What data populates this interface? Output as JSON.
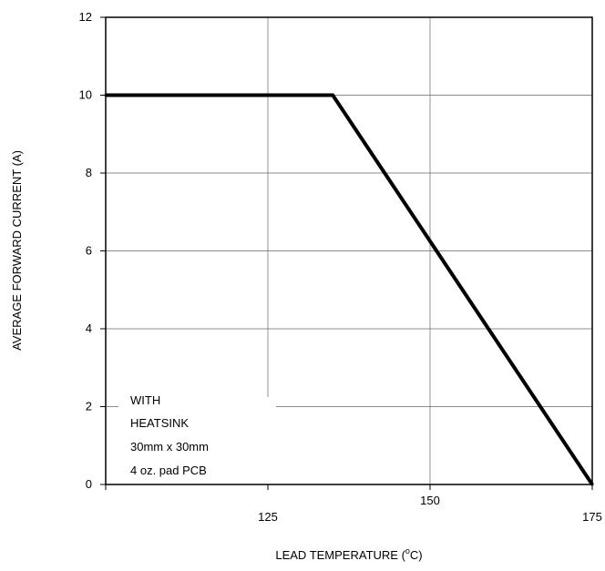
{
  "chart_data": {
    "type": "line",
    "title": "",
    "xlabel": "LEAD TEMPERATURE (",
    "xlabel_sup": "o",
    "xlabel_tail": "C)",
    "ylabel": "AVERAGE FORWARD CURRENT (A)",
    "xlim": [
      100,
      175
    ],
    "ylim": [
      0,
      12
    ],
    "x_ticks": [
      {
        "value": 125,
        "label": "125"
      },
      {
        "value": 150,
        "label": "150"
      },
      {
        "value": 175,
        "label": "175"
      }
    ],
    "y_ticks": [
      {
        "value": 0,
        "label": "0"
      },
      {
        "value": 2,
        "label": "2"
      },
      {
        "value": 4,
        "label": "4"
      },
      {
        "value": 6,
        "label": "6"
      },
      {
        "value": 8,
        "label": "8"
      },
      {
        "value": 10,
        "label": "10"
      },
      {
        "value": 12,
        "label": "12"
      }
    ],
    "grid": true,
    "series": [
      {
        "x": [
          100,
          135,
          175
        ],
        "y": [
          10,
          10,
          0
        ]
      }
    ],
    "annotation": [
      "WITH",
      "HEATSINK",
      "30mm x 30mm",
      "4 oz. pad PCB"
    ]
  }
}
